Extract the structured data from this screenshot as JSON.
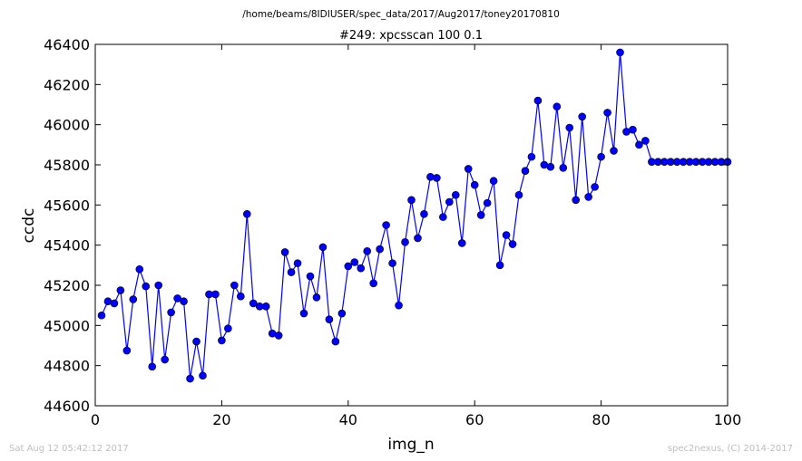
{
  "header": {
    "path": "/home/beams/8IDIUSER/spec_data/2017/Aug2017/toney20170810"
  },
  "footer": {
    "timestamp": "Sat Aug 12 05:42:12 2017",
    "credit": "spec2nexus, (C) 2014-2017"
  },
  "chart_data": {
    "type": "line",
    "title": "#249: xpcsscan 100 0.1",
    "xlabel": "img_n",
    "ylabel": "ccdc",
    "xlim": [
      0,
      100
    ],
    "ylim": [
      44600,
      46400
    ],
    "xticks": [
      0,
      20,
      40,
      60,
      80,
      100
    ],
    "yticks": [
      44600,
      44800,
      45000,
      45200,
      45400,
      45600,
      45800,
      46000,
      46200,
      46400
    ],
    "grid": false,
    "legend": "none",
    "colors": {
      "series": "#0000ff",
      "marker_edge": "#000000"
    },
    "series": [
      {
        "x": [
          1,
          2,
          3,
          4,
          5,
          6,
          7,
          8,
          9,
          10,
          11,
          12,
          13,
          14,
          15,
          16,
          17,
          18,
          19,
          20,
          21,
          22,
          23,
          24,
          25,
          26,
          27,
          28,
          29,
          30,
          31,
          32,
          33,
          34,
          35,
          36,
          37,
          38,
          39,
          40,
          41,
          42,
          43,
          44,
          45,
          46,
          47,
          48,
          49,
          50,
          51,
          52,
          53,
          54,
          55,
          56,
          57,
          58,
          59,
          60,
          61,
          62,
          63,
          64,
          65,
          66,
          67,
          68,
          69,
          70,
          71,
          72,
          73,
          74,
          75,
          76,
          77,
          78,
          79,
          80,
          81,
          82,
          83,
          84,
          85,
          86,
          87,
          88,
          89,
          90,
          91,
          92,
          93,
          94,
          95,
          96,
          97,
          98,
          99,
          100
        ],
        "y": [
          45050,
          45120,
          45110,
          45175,
          44875,
          45130,
          45280,
          45195,
          44795,
          45200,
          44830,
          45065,
          45135,
          45120,
          44735,
          44920,
          44750,
          45155,
          45155,
          44925,
          44985,
          45200,
          45145,
          45555,
          45110,
          45095,
          45095,
          44960,
          44950,
          45365,
          45265,
          45310,
          45060,
          45245,
          45140,
          45390,
          45030,
          44920,
          45060,
          45295,
          45315,
          45285,
          45370,
          45210,
          45380,
          45500,
          45310,
          45100,
          45415,
          45625,
          45435,
          45555,
          45740,
          45735,
          45540,
          45615,
          45650,
          45410,
          45780,
          45700,
          45550,
          45610,
          45720,
          45300,
          45450,
          45405,
          45650,
          45770,
          45840,
          46120,
          45800,
          45790,
          46090,
          45785,
          45985,
          45625,
          46040,
          45640,
          45690,
          45840,
          46060,
          45870,
          46360,
          45965,
          45975,
          45900,
          45920,
          45815,
          45815,
          45815,
          45815,
          45815,
          45815,
          45815,
          45815,
          45815,
          45815,
          45815,
          45815,
          45815
        ]
      }
    ]
  }
}
